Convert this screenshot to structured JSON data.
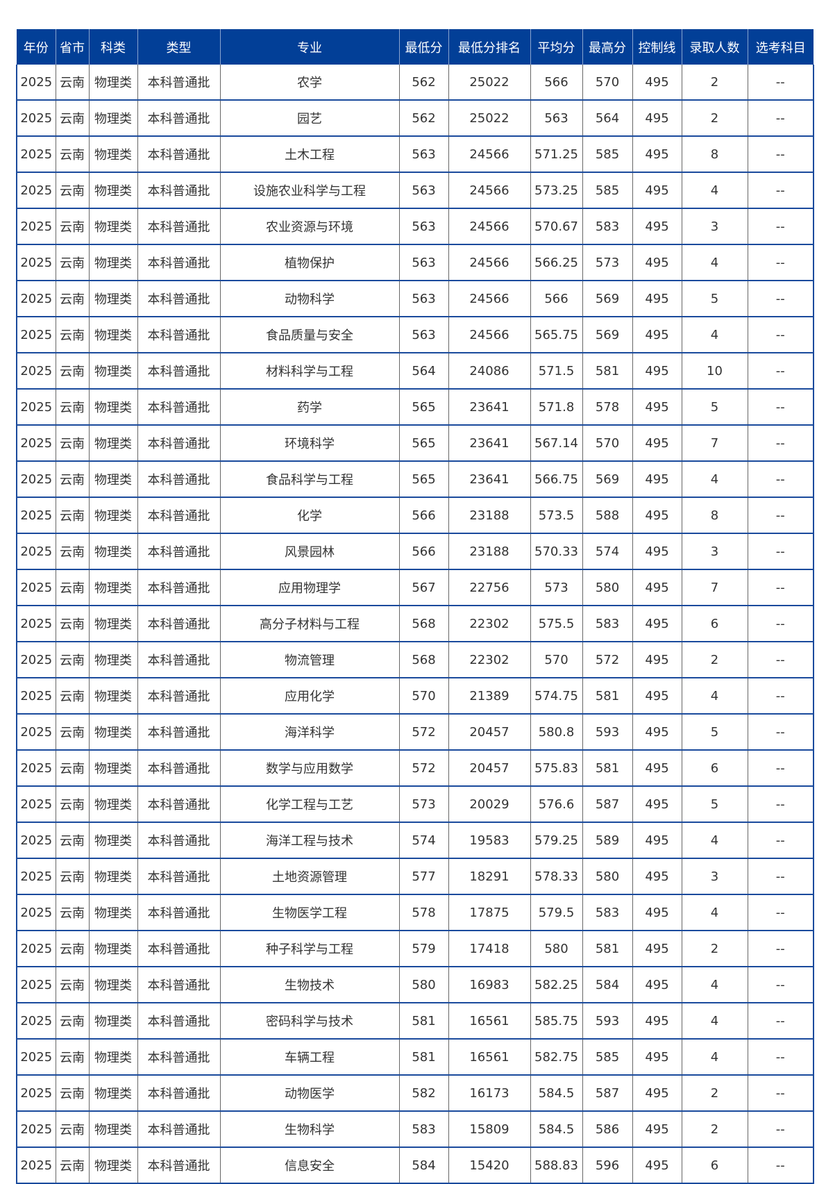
{
  "header": [
    "年份",
    "省市",
    "科类",
    "类型",
    "专业",
    "最低分",
    "最低分排名",
    "平均分",
    "最高分",
    "控制线",
    "录取人数",
    "选考科目"
  ],
  "rows": [
    [
      "2025",
      "云南",
      "物理类",
      "本科普通批",
      "农学",
      "562",
      "25022",
      "566",
      "570",
      "495",
      "2",
      "--"
    ],
    [
      "2025",
      "云南",
      "物理类",
      "本科普通批",
      "园艺",
      "562",
      "25022",
      "563",
      "564",
      "495",
      "2",
      "--"
    ],
    [
      "2025",
      "云南",
      "物理类",
      "本科普通批",
      "土木工程",
      "563",
      "24566",
      "571.25",
      "585",
      "495",
      "8",
      "--"
    ],
    [
      "2025",
      "云南",
      "物理类",
      "本科普通批",
      "设施农业科学与工程",
      "563",
      "24566",
      "573.25",
      "585",
      "495",
      "4",
      "--"
    ],
    [
      "2025",
      "云南",
      "物理类",
      "本科普通批",
      "农业资源与环境",
      "563",
      "24566",
      "570.67",
      "583",
      "495",
      "3",
      "--"
    ],
    [
      "2025",
      "云南",
      "物理类",
      "本科普通批",
      "植物保护",
      "563",
      "24566",
      "566.25",
      "573",
      "495",
      "4",
      "--"
    ],
    [
      "2025",
      "云南",
      "物理类",
      "本科普通批",
      "动物科学",
      "563",
      "24566",
      "566",
      "569",
      "495",
      "5",
      "--"
    ],
    [
      "2025",
      "云南",
      "物理类",
      "本科普通批",
      "食品质量与安全",
      "563",
      "24566",
      "565.75",
      "569",
      "495",
      "4",
      "--"
    ],
    [
      "2025",
      "云南",
      "物理类",
      "本科普通批",
      "材料科学与工程",
      "564",
      "24086",
      "571.5",
      "581",
      "495",
      "10",
      "--"
    ],
    [
      "2025",
      "云南",
      "物理类",
      "本科普通批",
      "药学",
      "565",
      "23641",
      "571.8",
      "578",
      "495",
      "5",
      "--"
    ],
    [
      "2025",
      "云南",
      "物理类",
      "本科普通批",
      "环境科学",
      "565",
      "23641",
      "567.14",
      "570",
      "495",
      "7",
      "--"
    ],
    [
      "2025",
      "云南",
      "物理类",
      "本科普通批",
      "食品科学与工程",
      "565",
      "23641",
      "566.75",
      "569",
      "495",
      "4",
      "--"
    ],
    [
      "2025",
      "云南",
      "物理类",
      "本科普通批",
      "化学",
      "566",
      "23188",
      "573.5",
      "588",
      "495",
      "8",
      "--"
    ],
    [
      "2025",
      "云南",
      "物理类",
      "本科普通批",
      "风景园林",
      "566",
      "23188",
      "570.33",
      "574",
      "495",
      "3",
      "--"
    ],
    [
      "2025",
      "云南",
      "物理类",
      "本科普通批",
      "应用物理学",
      "567",
      "22756",
      "573",
      "580",
      "495",
      "7",
      "--"
    ],
    [
      "2025",
      "云南",
      "物理类",
      "本科普通批",
      "高分子材料与工程",
      "568",
      "22302",
      "575.5",
      "583",
      "495",
      "6",
      "--"
    ],
    [
      "2025",
      "云南",
      "物理类",
      "本科普通批",
      "物流管理",
      "568",
      "22302",
      "570",
      "572",
      "495",
      "2",
      "--"
    ],
    [
      "2025",
      "云南",
      "物理类",
      "本科普通批",
      "应用化学",
      "570",
      "21389",
      "574.75",
      "581",
      "495",
      "4",
      "--"
    ],
    [
      "2025",
      "云南",
      "物理类",
      "本科普通批",
      "海洋科学",
      "572",
      "20457",
      "580.8",
      "593",
      "495",
      "5",
      "--"
    ],
    [
      "2025",
      "云南",
      "物理类",
      "本科普通批",
      "数学与应用数学",
      "572",
      "20457",
      "575.83",
      "581",
      "495",
      "6",
      "--"
    ],
    [
      "2025",
      "云南",
      "物理类",
      "本科普通批",
      "化学工程与工艺",
      "573",
      "20029",
      "576.6",
      "587",
      "495",
      "5",
      "--"
    ],
    [
      "2025",
      "云南",
      "物理类",
      "本科普通批",
      "海洋工程与技术",
      "574",
      "19583",
      "579.25",
      "589",
      "495",
      "4",
      "--"
    ],
    [
      "2025",
      "云南",
      "物理类",
      "本科普通批",
      "土地资源管理",
      "577",
      "18291",
      "578.33",
      "580",
      "495",
      "3",
      "--"
    ],
    [
      "2025",
      "云南",
      "物理类",
      "本科普通批",
      "生物医学工程",
      "578",
      "17875",
      "579.5",
      "583",
      "495",
      "4",
      "--"
    ],
    [
      "2025",
      "云南",
      "物理类",
      "本科普通批",
      "种子科学与工程",
      "579",
      "17418",
      "580",
      "581",
      "495",
      "2",
      "--"
    ],
    [
      "2025",
      "云南",
      "物理类",
      "本科普通批",
      "生物技术",
      "580",
      "16983",
      "582.25",
      "584",
      "495",
      "4",
      "--"
    ],
    [
      "2025",
      "云南",
      "物理类",
      "本科普通批",
      "密码科学与技术",
      "581",
      "16561",
      "585.75",
      "593",
      "495",
      "4",
      "--"
    ],
    [
      "2025",
      "云南",
      "物理类",
      "本科普通批",
      "车辆工程",
      "581",
      "16561",
      "582.75",
      "585",
      "495",
      "4",
      "--"
    ],
    [
      "2025",
      "云南",
      "物理类",
      "本科普通批",
      "动物医学",
      "582",
      "16173",
      "584.5",
      "587",
      "495",
      "2",
      "--"
    ],
    [
      "2025",
      "云南",
      "物理类",
      "本科普通批",
      "生物科学",
      "583",
      "15809",
      "584.5",
      "586",
      "495",
      "2",
      "--"
    ],
    [
      "2025",
      "云南",
      "物理类",
      "本科普通批",
      "信息安全",
      "584",
      "15420",
      "588.83",
      "596",
      "495",
      "6",
      "--"
    ]
  ],
  "colors": {
    "header_bg": "#023f97",
    "header_text": "#ffffff",
    "row_border": "#1a4a9c"
  }
}
